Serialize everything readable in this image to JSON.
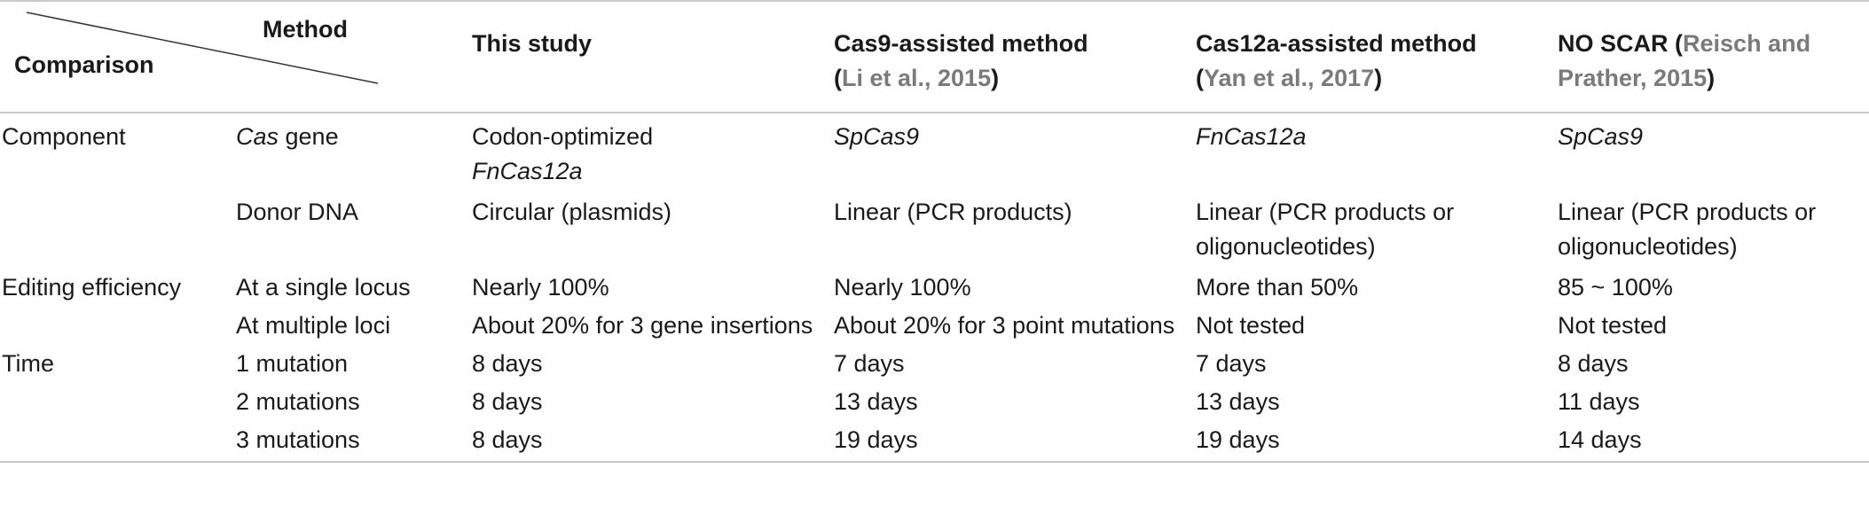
{
  "header": {
    "corner_top": "Method",
    "corner_bottom": "Comparison",
    "columns": [
      {
        "title": "This study",
        "ref": ""
      },
      {
        "title": "Cas9-assisted method",
        "ref": "Li et al., 2015"
      },
      {
        "title": "Cas12a-assisted method",
        "ref": "Yan et al., 2017"
      },
      {
        "title": "NO SCAR",
        "ref": "Reisch and Prather, 2015"
      }
    ]
  },
  "rows": [
    {
      "group": "Component",
      "item_prefix_italic": "Cas",
      "item": " gene",
      "cells": [
        "Codon-optimized",
        "SpCas9",
        "FnCas12a",
        "SpCas9"
      ],
      "cell0_line2": "FnCas12a"
    },
    {
      "group": "",
      "item": "Donor DNA",
      "cells": [
        "Circular (plasmids)",
        "Linear (PCR products)",
        "Linear (PCR products or oligonucleotides)",
        "Linear (PCR products or oligonucleotides)"
      ]
    },
    {
      "group": "Editing efficiency",
      "item": "At a single locus",
      "cells": [
        "Nearly 100%",
        "Nearly 100%",
        "More than 50%",
        "85 ~ 100%"
      ]
    },
    {
      "group": "",
      "item": "At multiple loci",
      "cells": [
        "About 20% for 3 gene insertions",
        "About 20% for 3 point mutations",
        "Not tested",
        "Not tested"
      ]
    },
    {
      "group": "Time",
      "item": "1 mutation",
      "cells": [
        "8 days",
        "7 days",
        "7 days",
        "8 days"
      ]
    },
    {
      "group": "",
      "item": "2 mutations",
      "cells": [
        "8 days",
        "13 days",
        "13 days",
        "11 days"
      ]
    },
    {
      "group": "",
      "item": "3 mutations",
      "cells": [
        "8 days",
        "19 days",
        "19 days",
        "14 days"
      ]
    }
  ]
}
